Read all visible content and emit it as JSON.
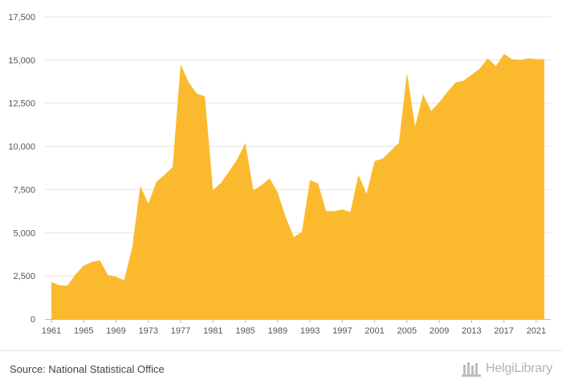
{
  "chart_data": {
    "type": "area",
    "title": "",
    "xlabel": "",
    "ylabel": "",
    "x": [
      1961,
      1962,
      1963,
      1964,
      1965,
      1966,
      1967,
      1968,
      1969,
      1970,
      1971,
      1972,
      1973,
      1974,
      1975,
      1976,
      1977,
      1978,
      1979,
      1980,
      1981,
      1982,
      1983,
      1984,
      1985,
      1986,
      1987,
      1988,
      1989,
      1990,
      1991,
      1992,
      1993,
      1994,
      1995,
      1996,
      1997,
      1998,
      1999,
      2000,
      2001,
      2002,
      2003,
      2004,
      2005,
      2006,
      2007,
      2008,
      2009,
      2010,
      2011,
      2012,
      2013,
      2014,
      2015,
      2016,
      2017,
      2018,
      2019,
      2020,
      2021,
      2022
    ],
    "values": [
      2150,
      1950,
      1930,
      2600,
      3100,
      3300,
      3400,
      2550,
      2450,
      2250,
      4150,
      7700,
      6700,
      7950,
      8350,
      8800,
      14750,
      13700,
      13050,
      12900,
      7450,
      7900,
      8550,
      9250,
      10200,
      7450,
      7750,
      8150,
      7350,
      5900,
      4750,
      5050,
      8050,
      7850,
      6250,
      6250,
      6350,
      6200,
      8350,
      7250,
      9150,
      9300,
      9750,
      10200,
      14250,
      11150,
      13000,
      12050,
      12550,
      13150,
      13700,
      13800,
      14150,
      14500,
      15100,
      14650,
      15350,
      15050,
      15000,
      15100,
      15050,
      15050
    ],
    "xticks": [
      "1961",
      "1965",
      "1969",
      "1973",
      "1977",
      "1981",
      "1985",
      "1989",
      "1993",
      "1997",
      "2001",
      "2005",
      "2009",
      "2013",
      "2017",
      "2021"
    ],
    "yticks": [
      "0",
      "2,500",
      "5,000",
      "7,500",
      "10,000",
      "12,500",
      "15,000",
      "17,500"
    ],
    "ylim": [
      0,
      17500
    ],
    "grid": true,
    "legend": "none",
    "color": "#FBBA2E"
  },
  "footer": {
    "source": "Source: National Statistical Office",
    "brand": "HelgiLibrary"
  }
}
